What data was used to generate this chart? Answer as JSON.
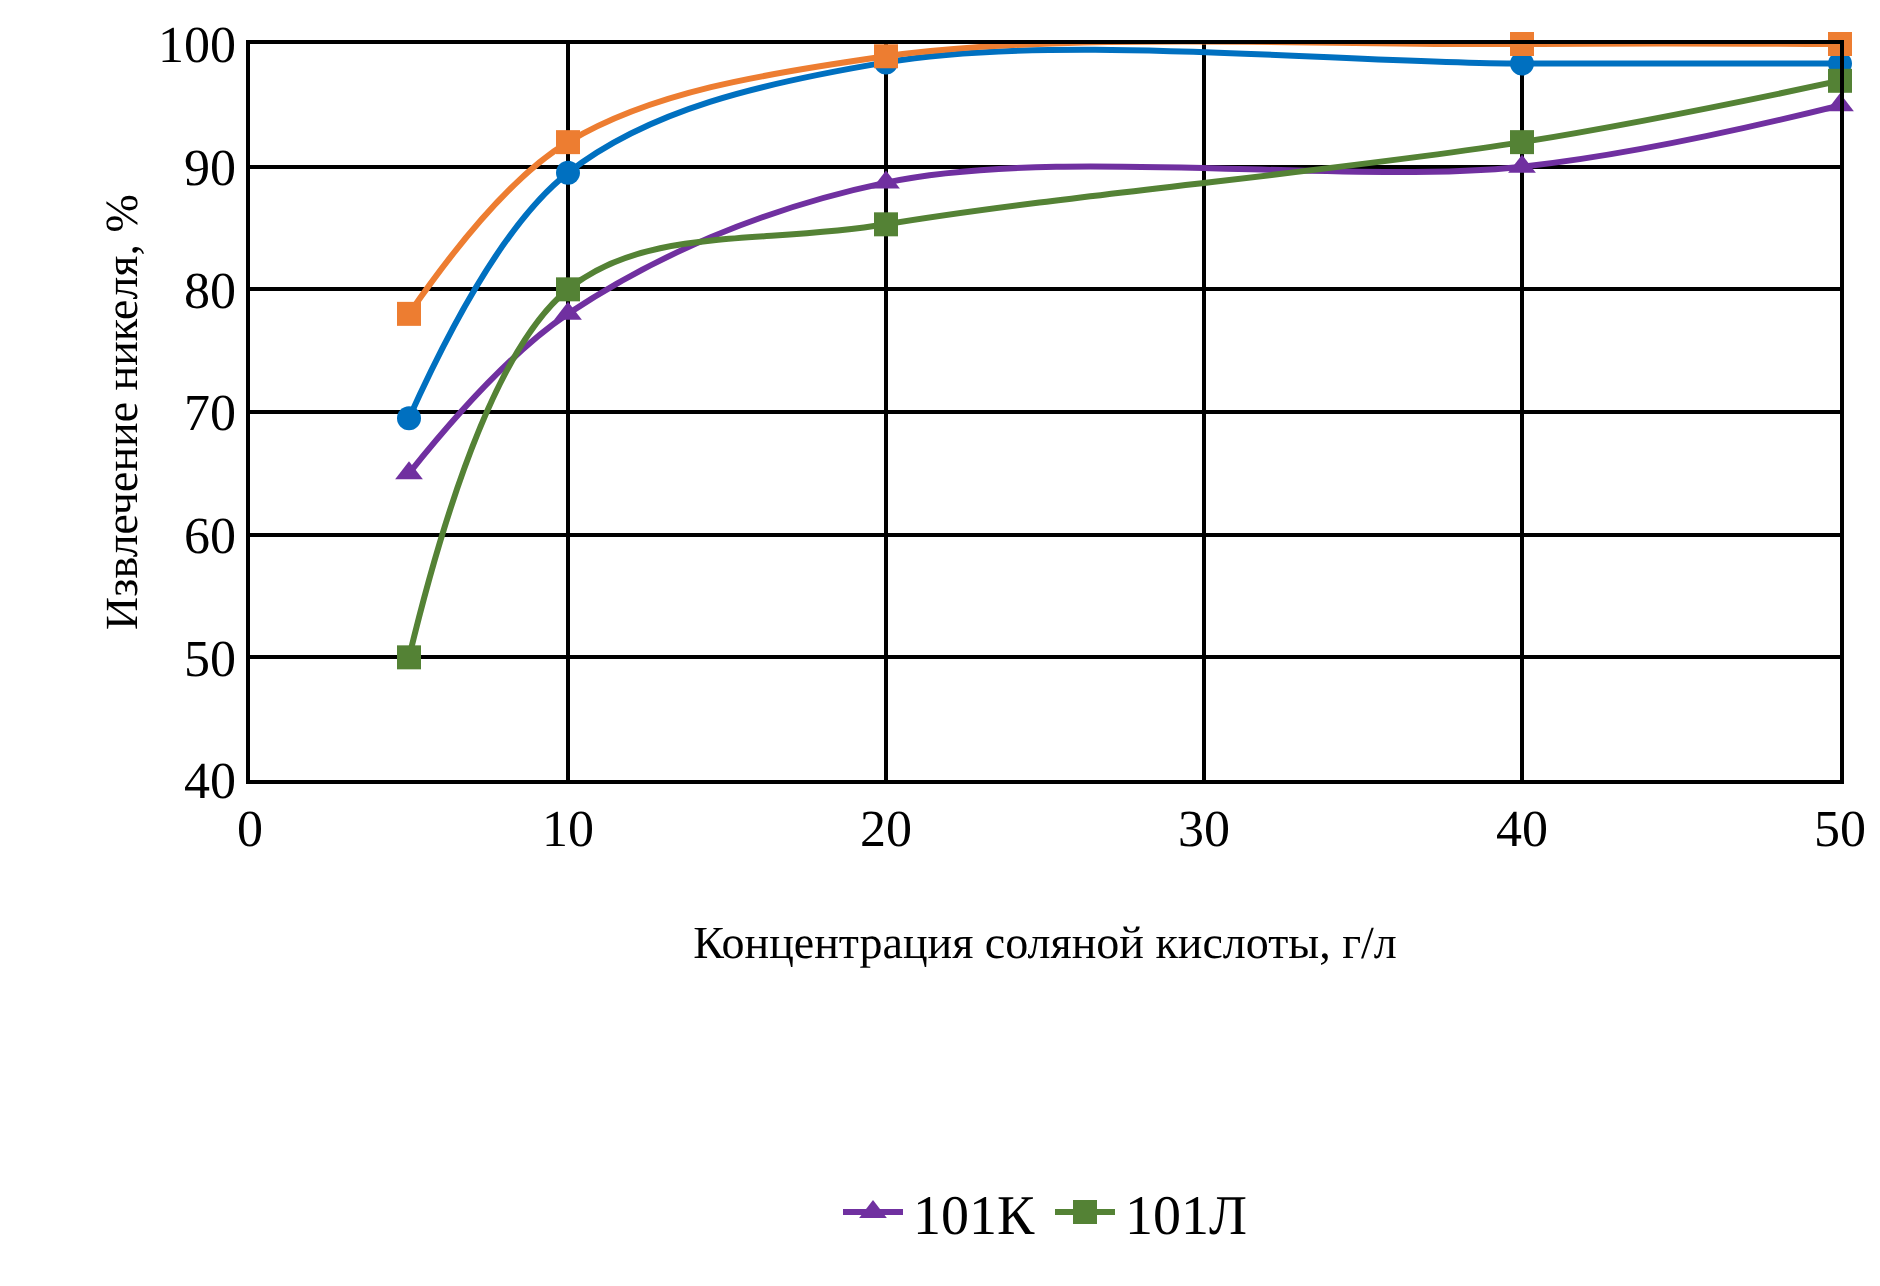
{
  "chart_data": {
    "type": "line",
    "xlabel": "Концентрация соляной кислоты, г/л",
    "ylabel": "Извлечение никеля, %",
    "x": [
      5,
      10,
      20,
      40,
      50
    ],
    "xlim": [
      0,
      50
    ],
    "xticks": [
      0,
      10,
      20,
      30,
      40,
      50
    ],
    "ylim": [
      40,
      100
    ],
    "yticks": [
      40,
      50,
      60,
      70,
      80,
      90,
      100
    ],
    "grid": true,
    "legend": "bottom",
    "series": [
      {
        "color": "#0070c0",
        "marker": "circle",
        "values": [
          69.5,
          89.5,
          98.5,
          98.4,
          98.4
        ]
      },
      {
        "color": "#ed7d31",
        "marker": "square",
        "values": [
          78,
          92,
          99,
          100,
          100
        ]
      },
      {
        "name": "101К",
        "color": "#7030a0",
        "marker": "triangle",
        "values": [
          65,
          78,
          88.7,
          90,
          95
        ]
      },
      {
        "name": "101Л",
        "color": "#548235",
        "marker": "square",
        "values": [
          50,
          80,
          85.3,
          92,
          97
        ]
      }
    ]
  }
}
